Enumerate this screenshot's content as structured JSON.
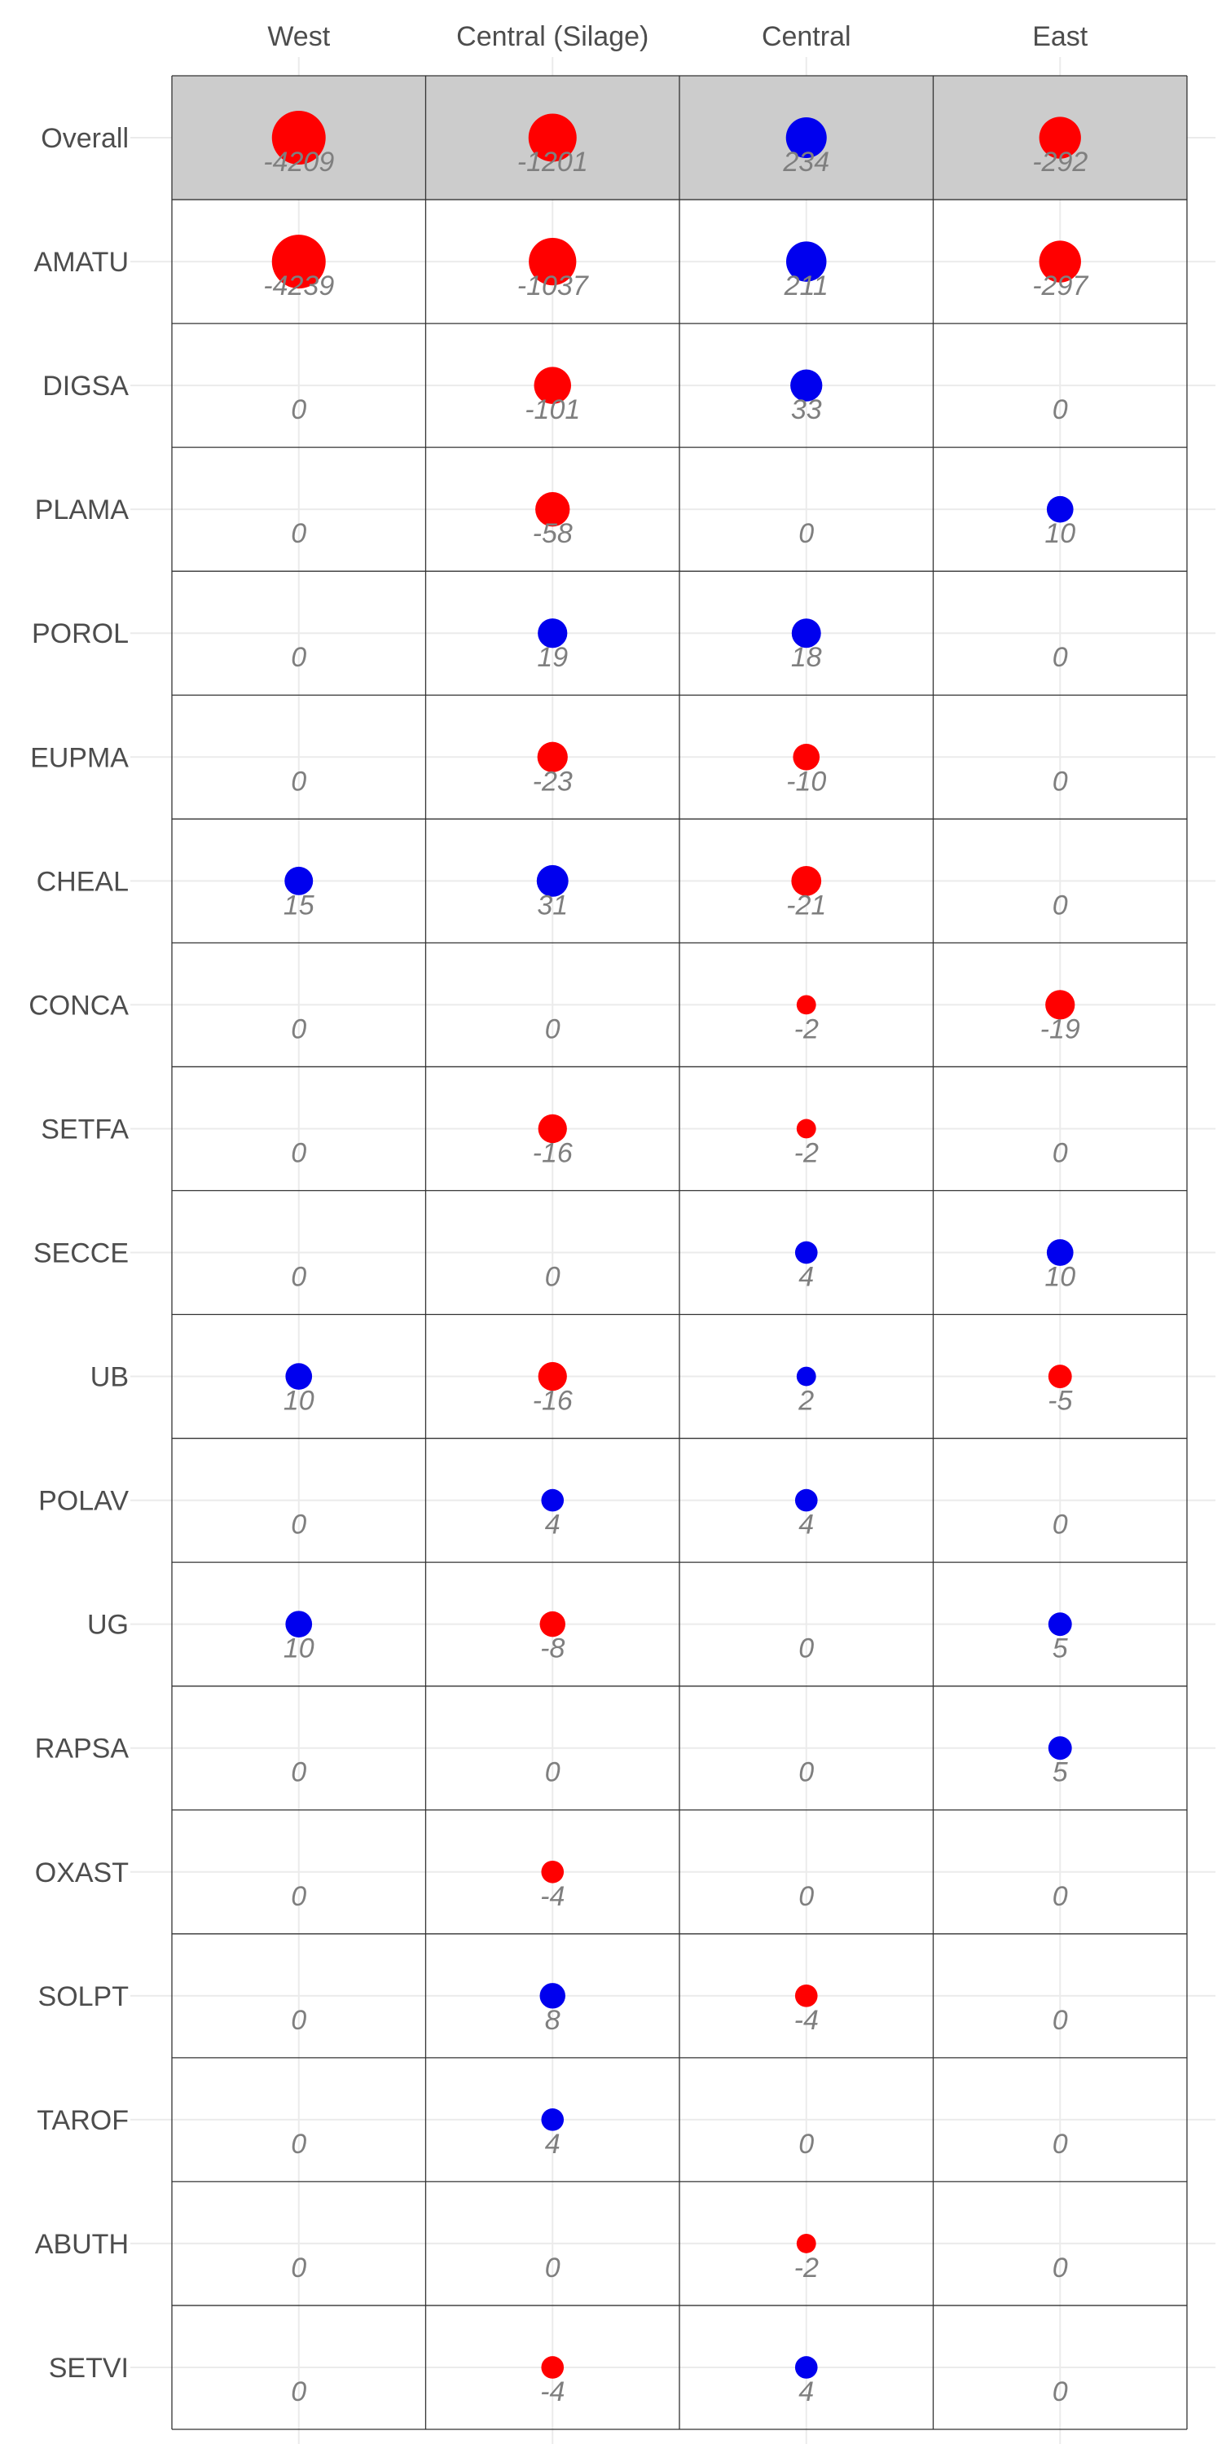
{
  "chart_data": {
    "type": "bubble-grid",
    "columns": [
      "West",
      "Central (Silage)",
      "Central",
      "East"
    ],
    "rows": [
      "Overall",
      "AMATU",
      "DIGSA",
      "PLAMA",
      "POROL",
      "EUPMA",
      "CHEAL",
      "CONCA",
      "SETFA",
      "SECCE",
      "UB",
      "POLAV",
      "UG",
      "RAPSA",
      "OXAST",
      "SOLPT",
      "TAROF",
      "ABUTH",
      "SETVI"
    ],
    "values": [
      [
        -4209,
        -1201,
        234,
        -292
      ],
      [
        -4239,
        -1037,
        211,
        -297
      ],
      [
        0,
        -101,
        33,
        0
      ],
      [
        0,
        -58,
        0,
        10
      ],
      [
        0,
        19,
        18,
        0
      ],
      [
        0,
        -23,
        -10,
        0
      ],
      [
        15,
        31,
        -21,
        0
      ],
      [
        0,
        0,
        -2,
        -19
      ],
      [
        0,
        -16,
        -2,
        0
      ],
      [
        0,
        0,
        4,
        10
      ],
      [
        10,
        -16,
        2,
        -5
      ],
      [
        0,
        4,
        4,
        0
      ],
      [
        10,
        -8,
        0,
        5
      ],
      [
        0,
        0,
        0,
        5
      ],
      [
        0,
        -4,
        0,
        0
      ],
      [
        0,
        8,
        -4,
        0
      ],
      [
        0,
        4,
        0,
        0
      ],
      [
        0,
        0,
        -2,
        0
      ],
      [
        0,
        -4,
        4,
        0
      ]
    ],
    "highlight_row": "Overall",
    "colors": {
      "positive": "#0000ee",
      "negative": "#ff0000",
      "highlight_bg": "#cccccc",
      "grid": "#333333",
      "bg_grid": "#ebebeb"
    }
  }
}
